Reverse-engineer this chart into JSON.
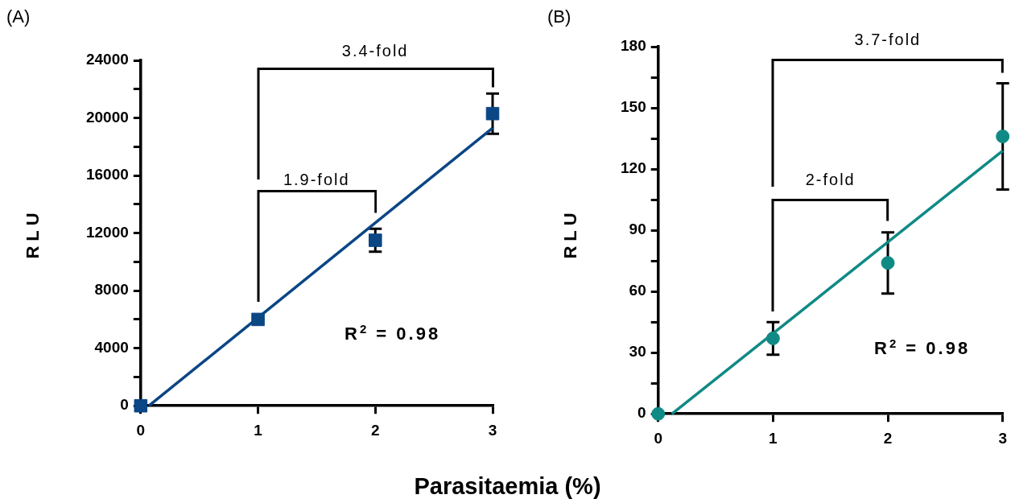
{
  "chart_data": [
    {
      "type": "scatter",
      "xlabel": "Parasitaemia (%)",
      "ylabel": "RLU",
      "marker": "square",
      "grid": false,
      "legend": false,
      "xlim": [
        0,
        3
      ],
      "xticks": [
        0,
        1,
        2,
        3
      ],
      "ylim": [
        0,
        24000
      ],
      "yticks": [
        0,
        {
          "value": 2000,
          "label": null
        },
        4000,
        {
          "value": 6000,
          "label": null
        },
        8000,
        {
          "value": 10000,
          "label": null
        },
        12000,
        {
          "value": 14000,
          "label": null
        },
        16000,
        {
          "value": 18000,
          "label": null
        },
        20000,
        {
          "value": 22000,
          "label": null
        },
        24000
      ],
      "series": [
        {
          "color": "#0b4685",
          "x": [
            0,
            1,
            2,
            3
          ],
          "values": [
            0,
            6000,
            11500,
            20300
          ],
          "errors": [
            null,
            null,
            800,
            1400
          ]
        },
        {
          "type": "line",
          "color": "#0b4685",
          "marker": "none",
          "x": [
            0.07,
            3
          ],
          "values": [
            0,
            19300
          ]
        }
      ],
      "annotations": [
        "(A)",
        "R$^{2}$ = 0.98",
        "1.9-fold",
        "3.4-fold"
      ]
    },
    {
      "type": "scatter",
      "ylabel": "RLU",
      "marker": "circle",
      "grid": false,
      "legend": false,
      "xlim": [
        0,
        3
      ],
      "xticks": [
        0,
        1,
        2,
        3
      ],
      "ylim": [
        0,
        180
      ],
      "yticks": [
        0,
        {
          "value": 15,
          "label": null
        },
        30,
        {
          "value": 45,
          "label": null
        },
        60,
        {
          "value": 75,
          "label": null
        },
        90,
        {
          "value": 105,
          "label": null
        },
        120,
        {
          "value": 135,
          "label": null
        },
        150,
        {
          "value": 165,
          "label": null
        },
        180
      ],
      "series": [
        {
          "color": "#108a85",
          "x": [
            0,
            1,
            2,
            3
          ],
          "values": [
            0,
            37,
            74,
            136
          ],
          "errors": [
            null,
            8,
            15,
            26
          ]
        },
        {
          "type": "line",
          "color": "#108a85",
          "marker": "none",
          "x": [
            0.12,
            3
          ],
          "values": [
            0,
            129
          ]
        }
      ],
      "annotations": [
        "(B)",
        "R$^{2}$ = 0.98",
        "2-fold",
        "3.7-fold"
      ]
    }
  ]
}
